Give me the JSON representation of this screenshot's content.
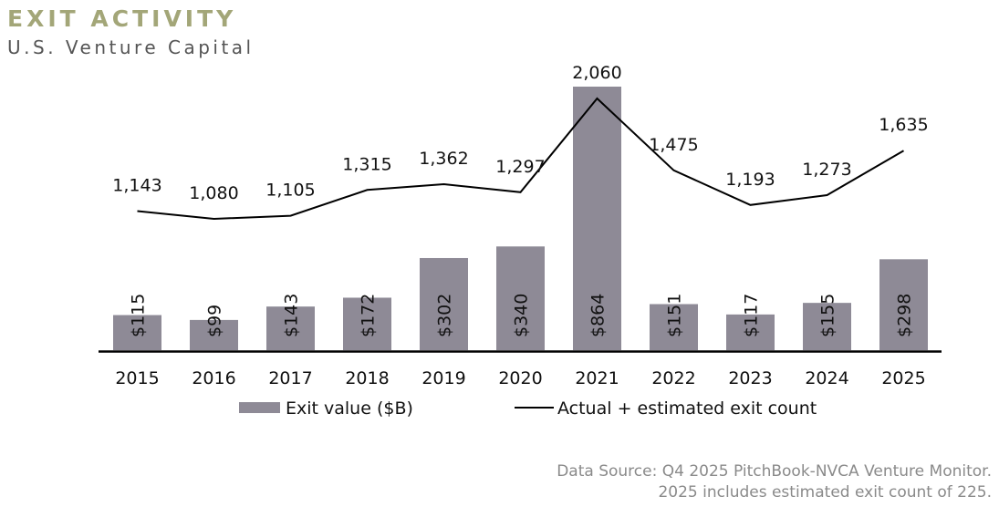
{
  "header": {
    "title": "EXIT ACTIVITY",
    "subtitle": "U.S. Venture Capital"
  },
  "chart_data": {
    "type": "bar",
    "title": "EXIT ACTIVITY",
    "subtitle": "U.S. Venture Capital",
    "xlabel": "",
    "ylabel": "",
    "categories": [
      "2015",
      "2016",
      "2017",
      "2018",
      "2019",
      "2020",
      "2021",
      "2022",
      "2023",
      "2024",
      "2025"
    ],
    "series": [
      {
        "name": "Exit value ($B)",
        "type": "bar",
        "values": [
          115,
          99,
          143,
          172,
          302,
          340,
          864,
          151,
          117,
          155,
          298
        ],
        "labels": [
          "$115",
          "$99",
          "$143",
          "$172",
          "$302",
          "$340",
          "$864",
          "$151",
          "$117",
          "$155",
          "$298"
        ],
        "color": "#8e8a96"
      },
      {
        "name": "Actual + estimated exit count",
        "type": "line",
        "values": [
          1143,
          1080,
          1105,
          1315,
          1362,
          1297,
          2060,
          1475,
          1193,
          1273,
          1635
        ],
        "labels": [
          "1,143",
          "1,080",
          "1,105",
          "1,315",
          "1,362",
          "1,297",
          "2,060",
          "1,475",
          "1,193",
          "1,273",
          "1,635"
        ],
        "color": "#000000"
      }
    ],
    "grid": false,
    "legend_position": "bottom"
  },
  "footer": {
    "source_line1": "Data Source: Q4 2025 PitchBook-NVCA Venture Monitor.",
    "source_line2": "2025 includes estimated exit count of 225."
  }
}
